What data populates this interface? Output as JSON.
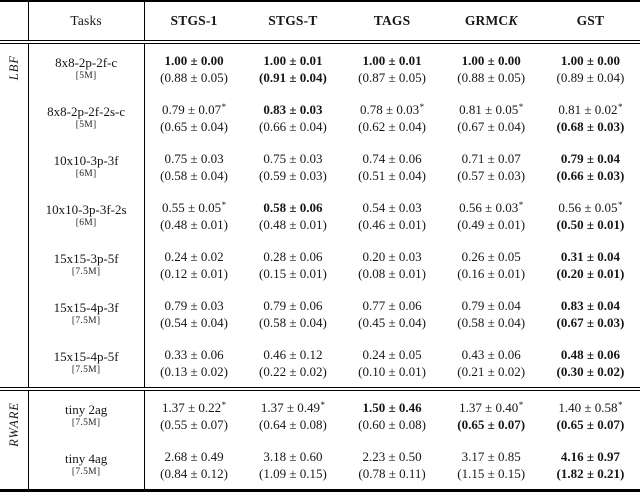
{
  "page": {
    "background": "#ffffff",
    "text_color": "#161616"
  },
  "table": {
    "task_header": "Tasks",
    "method_headers": [
      {
        "label": "STGS-1",
        "italic": ""
      },
      {
        "label": "STGS-T",
        "italic": ""
      },
      {
        "label": "TAGS",
        "italic": ""
      },
      {
        "label": "GRMC",
        "italic": "K"
      },
      {
        "label": "GST",
        "italic": ""
      }
    ],
    "footnote_marker": "*",
    "sections": [
      {
        "env": "LBF",
        "rows": [
          {
            "task": "8x8-2p-2f-c",
            "budget": "[5M]",
            "cells": [
              {
                "value": "1.00 ± 0.00",
                "bold": true,
                "star": false,
                "sub": "(0.88 ± 0.05)",
                "sub_bold": false
              },
              {
                "value": "1.00 ± 0.01",
                "bold": true,
                "star": false,
                "sub": "(0.91 ± 0.04)",
                "sub_bold": true
              },
              {
                "value": "1.00 ± 0.01",
                "bold": true,
                "star": false,
                "sub": "(0.87 ± 0.05)",
                "sub_bold": false
              },
              {
                "value": "1.00 ± 0.00",
                "bold": true,
                "star": false,
                "sub": "(0.88 ± 0.05)",
                "sub_bold": false
              },
              {
                "value": "1.00 ± 0.00",
                "bold": true,
                "star": false,
                "sub": "(0.89 ± 0.04)",
                "sub_bold": false
              }
            ]
          },
          {
            "task": "8x8-2p-2f-2s-c",
            "budget": "[5M]",
            "cells": [
              {
                "value": "0.79 ± 0.07",
                "bold": false,
                "star": true,
                "sub": "(0.65 ± 0.04)",
                "sub_bold": false
              },
              {
                "value": "0.83 ± 0.03",
                "bold": true,
                "star": false,
                "sub": "(0.66 ± 0.04)",
                "sub_bold": false
              },
              {
                "value": "0.78 ± 0.03",
                "bold": false,
                "star": true,
                "sub": "(0.62 ± 0.04)",
                "sub_bold": false
              },
              {
                "value": "0.81 ± 0.05",
                "bold": false,
                "star": true,
                "sub": "(0.67 ± 0.04)",
                "sub_bold": false
              },
              {
                "value": "0.81 ± 0.02",
                "bold": false,
                "star": true,
                "sub": "(0.68 ± 0.03)",
                "sub_bold": true
              }
            ]
          },
          {
            "task": "10x10-3p-3f",
            "budget": "[6M]",
            "cells": [
              {
                "value": "0.75 ± 0.03",
                "bold": false,
                "star": false,
                "sub": "(0.58 ± 0.04)",
                "sub_bold": false
              },
              {
                "value": "0.75 ± 0.03",
                "bold": false,
                "star": false,
                "sub": "(0.59 ± 0.03)",
                "sub_bold": false
              },
              {
                "value": "0.74 ± 0.06",
                "bold": false,
                "star": false,
                "sub": "(0.51 ± 0.04)",
                "sub_bold": false
              },
              {
                "value": "0.71 ± 0.07",
                "bold": false,
                "star": false,
                "sub": "(0.57 ± 0.03)",
                "sub_bold": false
              },
              {
                "value": "0.79 ± 0.04",
                "bold": true,
                "star": false,
                "sub": "(0.66 ± 0.03)",
                "sub_bold": true
              }
            ]
          },
          {
            "task": "10x10-3p-3f-2s",
            "budget": "[6M]",
            "cells": [
              {
                "value": "0.55 ± 0.05",
                "bold": false,
                "star": true,
                "sub": "(0.48 ± 0.01)",
                "sub_bold": false
              },
              {
                "value": "0.58 ± 0.06",
                "bold": true,
                "star": false,
                "sub": "(0.48 ± 0.01)",
                "sub_bold": false
              },
              {
                "value": "0.54 ± 0.03",
                "bold": false,
                "star": false,
                "sub": "(0.46 ± 0.01)",
                "sub_bold": false
              },
              {
                "value": "0.56 ± 0.03",
                "bold": false,
                "star": true,
                "sub": "(0.49 ± 0.01)",
                "sub_bold": false
              },
              {
                "value": "0.56 ± 0.05",
                "bold": false,
                "star": true,
                "sub": "(0.50 ± 0.01)",
                "sub_bold": true
              }
            ]
          },
          {
            "task": "15x15-3p-5f",
            "budget": "[7.5M]",
            "cells": [
              {
                "value": "0.24 ± 0.02",
                "bold": false,
                "star": false,
                "sub": "(0.12 ± 0.01)",
                "sub_bold": false
              },
              {
                "value": "0.28 ± 0.06",
                "bold": false,
                "star": false,
                "sub": "(0.15 ± 0.01)",
                "sub_bold": false
              },
              {
                "value": "0.20 ± 0.03",
                "bold": false,
                "star": false,
                "sub": "(0.08 ± 0.01)",
                "sub_bold": false
              },
              {
                "value": "0.26 ± 0.05",
                "bold": false,
                "star": false,
                "sub": "(0.16 ± 0.01)",
                "sub_bold": false
              },
              {
                "value": "0.31 ± 0.04",
                "bold": true,
                "star": false,
                "sub": "(0.20 ± 0.01)",
                "sub_bold": true
              }
            ]
          },
          {
            "task": "15x15-4p-3f",
            "budget": "[7.5M]",
            "cells": [
              {
                "value": "0.79 ± 0.03",
                "bold": false,
                "star": false,
                "sub": "(0.54 ± 0.04)",
                "sub_bold": false
              },
              {
                "value": "0.79 ± 0.06",
                "bold": false,
                "star": false,
                "sub": "(0.58 ± 0.04)",
                "sub_bold": false
              },
              {
                "value": "0.77 ± 0.06",
                "bold": false,
                "star": false,
                "sub": "(0.45 ± 0.04)",
                "sub_bold": false
              },
              {
                "value": "0.79 ± 0.04",
                "bold": false,
                "star": false,
                "sub": "(0.58 ± 0.04)",
                "sub_bold": false
              },
              {
                "value": "0.83 ± 0.04",
                "bold": true,
                "star": false,
                "sub": "(0.67 ± 0.03)",
                "sub_bold": true
              }
            ]
          },
          {
            "task": "15x15-4p-5f",
            "budget": "[7.5M]",
            "cells": [
              {
                "value": "0.33 ± 0.06",
                "bold": false,
                "star": false,
                "sub": "(0.13 ± 0.02)",
                "sub_bold": false
              },
              {
                "value": "0.46 ± 0.12",
                "bold": false,
                "star": false,
                "sub": "(0.22 ± 0.02)",
                "sub_bold": false
              },
              {
                "value": "0.24 ± 0.05",
                "bold": false,
                "star": false,
                "sub": "(0.10 ± 0.01)",
                "sub_bold": false
              },
              {
                "value": "0.43 ± 0.06",
                "bold": false,
                "star": false,
                "sub": "(0.21 ± 0.02)",
                "sub_bold": false
              },
              {
                "value": "0.48 ± 0.06",
                "bold": true,
                "star": false,
                "sub": "(0.30 ± 0.02)",
                "sub_bold": true
              }
            ]
          }
        ]
      },
      {
        "env": "RWARE",
        "rows": [
          {
            "task": "tiny 2ag",
            "budget": "[7.5M]",
            "cells": [
              {
                "value": "1.37 ± 0.22",
                "bold": false,
                "star": true,
                "sub": "(0.55 ± 0.07)",
                "sub_bold": false
              },
              {
                "value": "1.37 ± 0.49",
                "bold": false,
                "star": true,
                "sub": "(0.64 ± 0.08)",
                "sub_bold": false
              },
              {
                "value": "1.50 ± 0.46",
                "bold": true,
                "star": false,
                "sub": "(0.60 ± 0.08)",
                "sub_bold": false
              },
              {
                "value": "1.37 ± 0.40",
                "bold": false,
                "star": true,
                "sub": "(0.65 ± 0.07)",
                "sub_bold": true
              },
              {
                "value": "1.40 ± 0.58",
                "bold": false,
                "star": true,
                "sub": "(0.65 ± 0.07)",
                "sub_bold": true
              }
            ]
          },
          {
            "task": "tiny 4ag",
            "budget": "[7.5M]",
            "cells": [
              {
                "value": "2.68 ± 0.49",
                "bold": false,
                "star": false,
                "sub": "(0.84 ± 0.12)",
                "sub_bold": false
              },
              {
                "value": "3.18 ± 0.60",
                "bold": false,
                "star": false,
                "sub": "(1.09 ± 0.15)",
                "sub_bold": false
              },
              {
                "value": "2.23 ± 0.50",
                "bold": false,
                "star": false,
                "sub": "(0.78 ± 0.11)",
                "sub_bold": false
              },
              {
                "value": "3.17 ± 0.85",
                "bold": false,
                "star": false,
                "sub": "(1.15 ± 0.15)",
                "sub_bold": false
              },
              {
                "value": "4.16 ± 0.97",
                "bold": true,
                "star": false,
                "sub": "(1.82 ± 0.21)",
                "sub_bold": true
              }
            ]
          }
        ]
      }
    ]
  }
}
